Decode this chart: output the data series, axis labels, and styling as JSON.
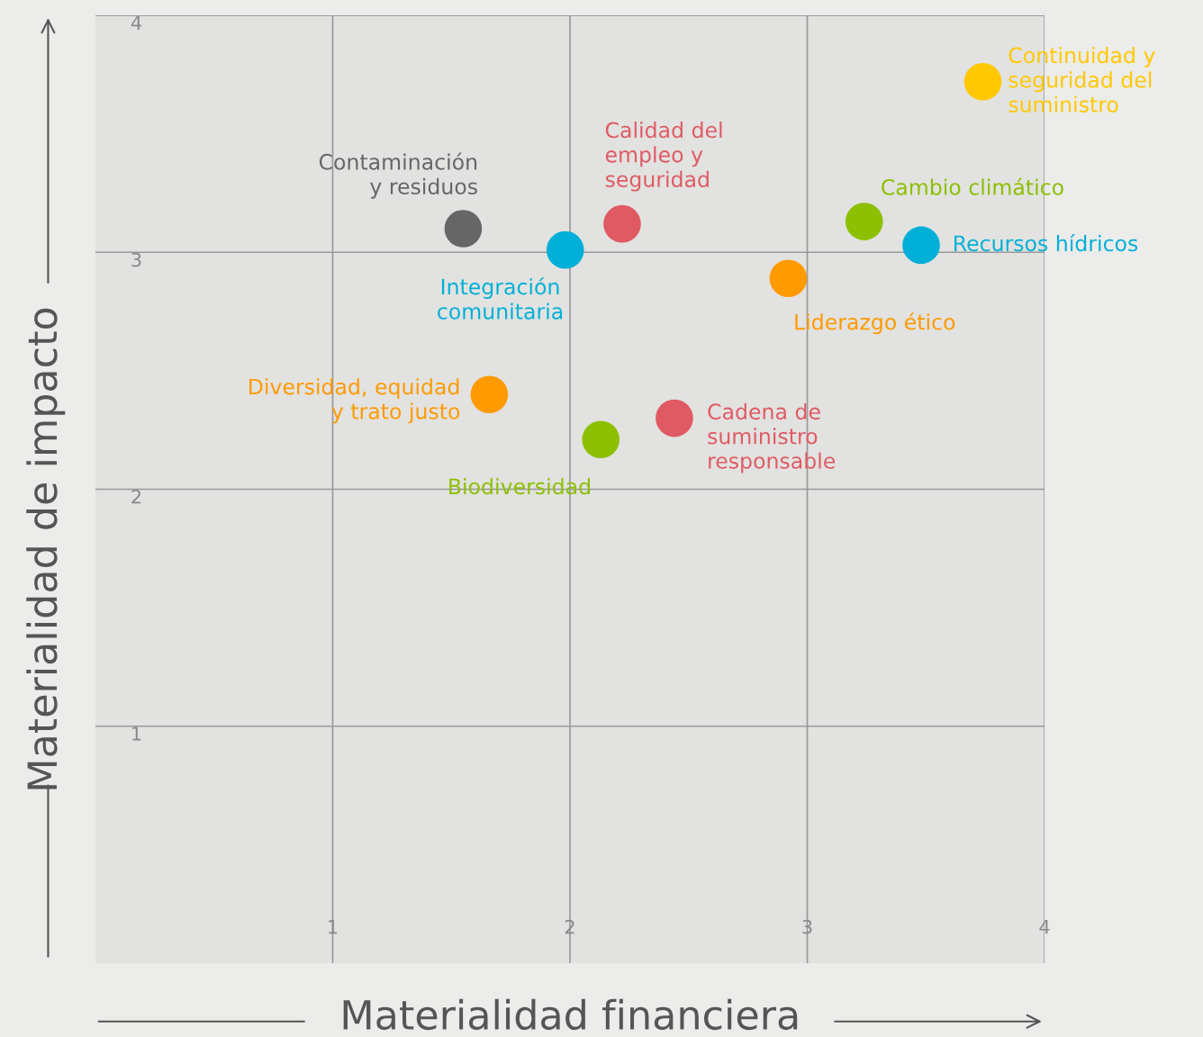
{
  "chart_data": {
    "type": "scatter",
    "xlabel": "Materialidad financiera",
    "ylabel": "Materialidad de impacto",
    "xlim": [
      0,
      4
    ],
    "ylim": [
      0,
      4
    ],
    "xticks": [
      1,
      2,
      3,
      4
    ],
    "yticks": [
      1,
      2,
      3,
      4
    ],
    "grid": true,
    "marker": "circle",
    "series": [
      {
        "name": "Contaminación\ny residuos",
        "color": "#666666",
        "x": [
          1.55
        ],
        "values": [
          3.1
        ]
      },
      {
        "name": "Integración\ncomunitaria",
        "color": "#00b0d8",
        "x": [
          1.98
        ],
        "values": [
          3.01
        ]
      },
      {
        "name": "Calidad del\nempleo y\nseguridad",
        "color": "#e05a64",
        "x": [
          2.22
        ],
        "values": [
          3.12
        ]
      },
      {
        "name": "Cambio climático",
        "color": "#8cc000",
        "x": [
          3.24
        ],
        "values": [
          3.13
        ]
      },
      {
        "name": "Recursos hídricos",
        "color": "#00b0d8",
        "x": [
          3.48
        ],
        "values": [
          3.03
        ]
      },
      {
        "name": "Continuidad y\nseguridad del\nsuministro",
        "color": "#ffc800",
        "x": [
          3.74
        ],
        "values": [
          3.72
        ]
      },
      {
        "name": "Liderazgo ético",
        "color": "#ff9a00",
        "x": [
          2.92
        ],
        "values": [
          2.89
        ]
      },
      {
        "name": "Diversidad, equidad\ny trato justo",
        "color": "#ff9a00",
        "x": [
          1.66
        ],
        "values": [
          2.4
        ]
      },
      {
        "name": "Cadena de\nsuministro\nresponsable",
        "color": "#e05a64",
        "x": [
          2.44
        ],
        "values": [
          2.3
        ]
      },
      {
        "name": "Biodiversidad",
        "color": "#8cc000",
        "x": [
          2.13
        ],
        "values": [
          2.21
        ]
      }
    ]
  }
}
